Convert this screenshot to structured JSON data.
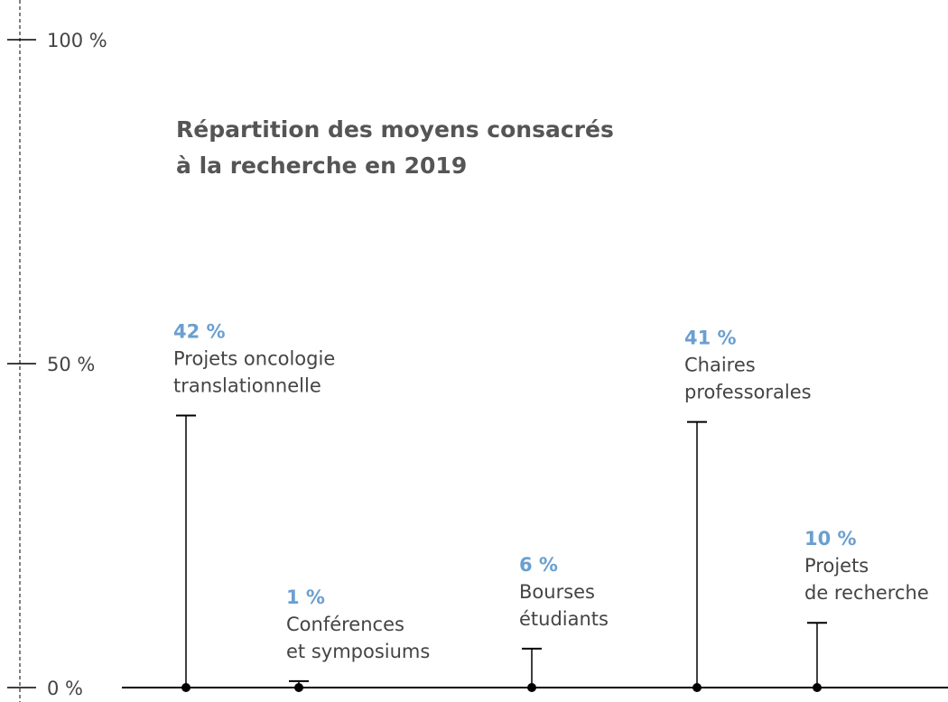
{
  "chart_data": {
    "type": "lollipop",
    "title": [
      "Répartition des moyens consacrés",
      "à la recherche en 2019"
    ],
    "categories": [
      [
        "Projets oncologie",
        "translationnelle"
      ],
      [
        "Conférences",
        "et symposiums"
      ],
      [
        "Bourses",
        "étudiants"
      ],
      [
        "Chaires",
        "professorales"
      ],
      [
        "Projets",
        "de recherche"
      ]
    ],
    "values": [
      42,
      1,
      6,
      41,
      10
    ],
    "value_labels": [
      "42 %",
      "1 %",
      "6 %",
      "41 %",
      "10 %"
    ],
    "ylim": [
      0,
      100
    ],
    "yticks": [
      {
        "value": 0,
        "label": "0 %"
      },
      {
        "value": 50,
        "label": "50 %"
      },
      {
        "value": 100,
        "label": "100 %"
      }
    ],
    "color": "#000000",
    "label_color": "#6a9fd0"
  }
}
